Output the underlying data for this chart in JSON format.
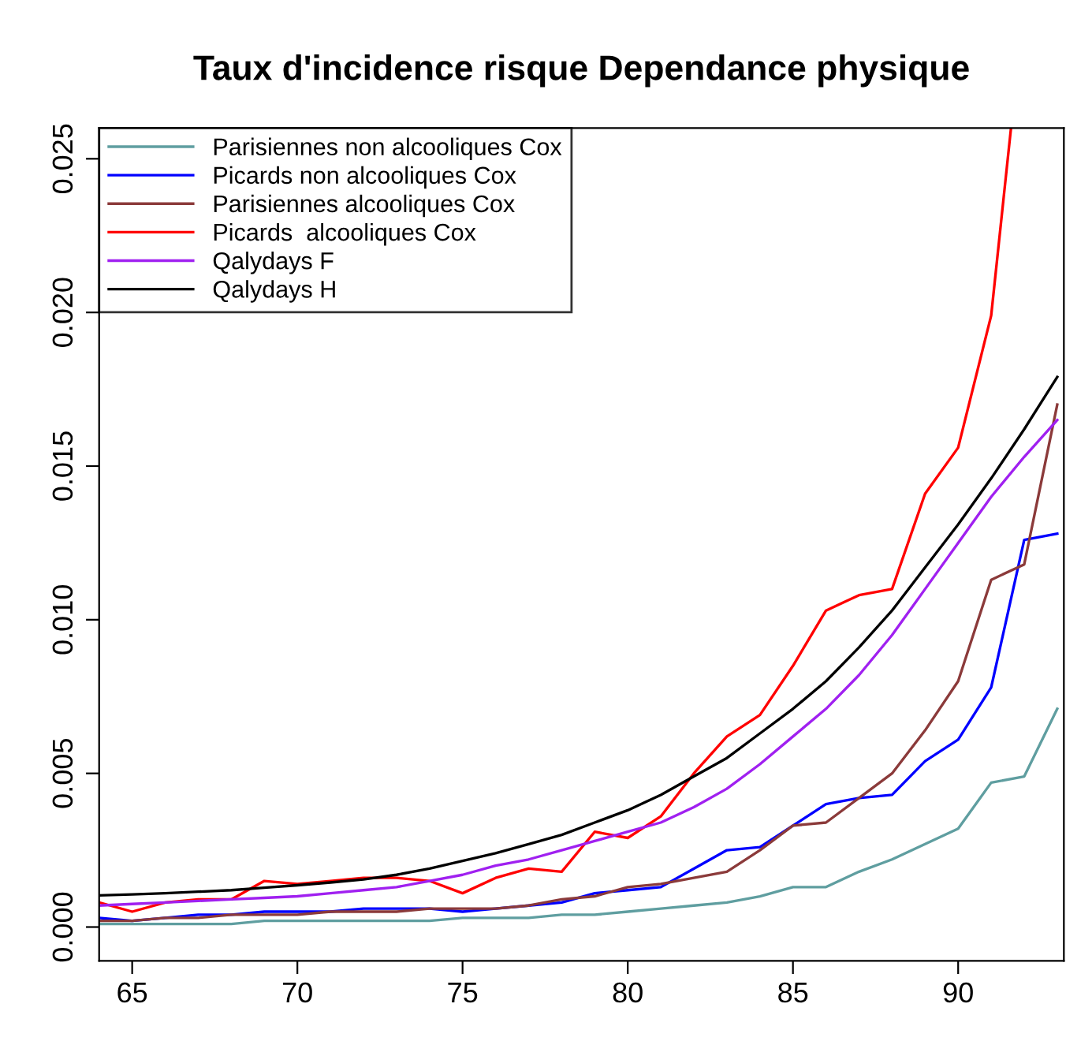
{
  "chart_data": {
    "type": "line",
    "title": "Taux d'incidence risque Dependance physique",
    "x": [
      64,
      65,
      66,
      67,
      68,
      69,
      70,
      71,
      72,
      73,
      74,
      75,
      76,
      77,
      78,
      79,
      80,
      81,
      82,
      83,
      84,
      85,
      86,
      87,
      88,
      89,
      90,
      91,
      92,
      93
    ],
    "series": [
      {
        "name": "Parisiennes non alcooliques Cox",
        "color": "#5f9ea0",
        "values": [
          0.0001,
          0.0001,
          0.0001,
          0.0001,
          0.0001,
          0.0002,
          0.0002,
          0.0002,
          0.0002,
          0.0002,
          0.0002,
          0.0003,
          0.0003,
          0.0003,
          0.0004,
          0.0004,
          0.0005,
          0.0006,
          0.0007,
          0.0008,
          0.001,
          0.0013,
          0.0013,
          0.0018,
          0.0022,
          0.0027,
          0.0032,
          0.0047,
          0.0049,
          0.0071
        ]
      },
      {
        "name": "Picards non alcooliques Cox",
        "color": "#0000ff",
        "values": [
          0.0003,
          0.0002,
          0.0003,
          0.0004,
          0.0004,
          0.0005,
          0.0005,
          0.0005,
          0.0006,
          0.0006,
          0.0006,
          0.0005,
          0.0006,
          0.0007,
          0.0008,
          0.0011,
          0.0012,
          0.0013,
          0.0019,
          0.0025,
          0.0026,
          0.0033,
          0.004,
          0.0042,
          0.0043,
          0.0054,
          0.0061,
          0.0078,
          0.0126,
          0.0128
        ]
      },
      {
        "name": "Parisiennes alcooliques Cox",
        "color": "#8b3a3a",
        "values": [
          0.0002,
          0.0002,
          0.0003,
          0.0003,
          0.0004,
          0.0004,
          0.0004,
          0.0005,
          0.0005,
          0.0005,
          0.0006,
          0.0006,
          0.0006,
          0.0007,
          0.0009,
          0.001,
          0.0013,
          0.0014,
          0.0016,
          0.0018,
          0.0025,
          0.0033,
          0.0034,
          0.0042,
          0.005,
          0.0064,
          0.008,
          0.0113,
          0.0118,
          0.017
        ]
      },
      {
        "name": "Picards  alcooliques Cox",
        "color": "#ff0000",
        "x": [
          64,
          65,
          66,
          67,
          68,
          69,
          70,
          71,
          72,
          73,
          74,
          75,
          76,
          77,
          78,
          79,
          80,
          81,
          82,
          83,
          84,
          85,
          86,
          87,
          88,
          89,
          90,
          91,
          91.6
        ],
        "values": [
          0.0008,
          0.0005,
          0.0008,
          0.0009,
          0.0009,
          0.0015,
          0.0014,
          0.0015,
          0.0016,
          0.0016,
          0.0015,
          0.0011,
          0.0016,
          0.0019,
          0.0018,
          0.0031,
          0.0029,
          0.0036,
          0.005,
          0.0062,
          0.0069,
          0.0085,
          0.0103,
          0.0108,
          0.011,
          0.0141,
          0.0156,
          0.0199,
          0.026
        ]
      },
      {
        "name": "Qalydays F",
        "color": "#a020f0",
        "values": [
          0.0007,
          0.00075,
          0.0008,
          0.00085,
          0.0009,
          0.00095,
          0.001,
          0.0011,
          0.0012,
          0.0013,
          0.0015,
          0.0017,
          0.002,
          0.0022,
          0.0025,
          0.0028,
          0.0031,
          0.0034,
          0.0039,
          0.0045,
          0.0053,
          0.0062,
          0.0071,
          0.0082,
          0.0095,
          0.011,
          0.0125,
          0.014,
          0.0153,
          0.0165
        ]
      },
      {
        "name": "Qalydays H",
        "color": "#000000",
        "values": [
          0.00103,
          0.00106,
          0.0011,
          0.00115,
          0.0012,
          0.00128,
          0.00136,
          0.00145,
          0.00155,
          0.0017,
          0.0019,
          0.00215,
          0.0024,
          0.0027,
          0.003,
          0.0034,
          0.0038,
          0.0043,
          0.0049,
          0.0055,
          0.0063,
          0.0071,
          0.008,
          0.0091,
          0.0103,
          0.0117,
          0.0131,
          0.0146,
          0.0162,
          0.0179
        ]
      }
    ],
    "xlim": [
      64,
      93.2
    ],
    "ylim": [
      -0.0011,
      0.026
    ],
    "xticks": [
      65,
      70,
      75,
      80,
      85,
      90
    ],
    "yticks": [
      {
        "value": 0,
        "label": "0.000"
      },
      {
        "value": 0.005,
        "label": "0.005"
      },
      {
        "value": 0.01,
        "label": "0.010"
      },
      {
        "value": 0.015,
        "label": "0.015"
      },
      {
        "value": 0.02,
        "label": "0.020"
      },
      {
        "value": 0.025,
        "label": "0.025"
      }
    ],
    "legend": "top left",
    "grid": false,
    "marker": "none",
    "line_style": "solid"
  }
}
